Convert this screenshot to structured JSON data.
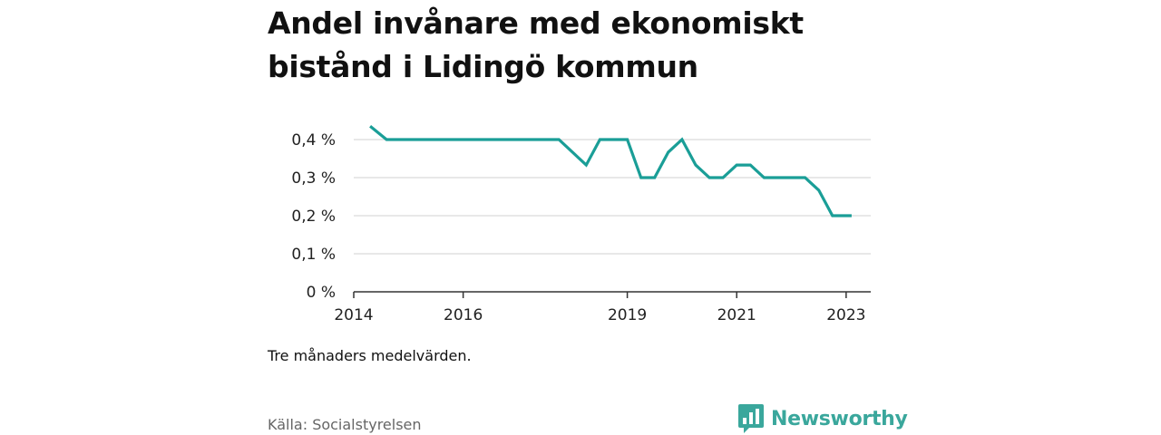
{
  "title": "Andel invånare med ekonomiskt bistånd i Lidingö kommun",
  "note": "Tre månaders medelvärden.",
  "source": "Källa: Socialstyrelsen",
  "brand": {
    "name": "Newsworthy",
    "color": "#3aa79c",
    "icon": "bar-chart-logo-icon"
  },
  "chart_data": {
    "type": "line",
    "title": "Andel invånare med ekonomiskt bistånd i Lidingö kommun",
    "xlabel": "",
    "ylabel": "",
    "ylim": [
      0,
      0.45
    ],
    "xlim": [
      2014,
      2023.45
    ],
    "grid": true,
    "line_color": "#1a9e97",
    "y_ticks": [
      {
        "value": 0,
        "label": "0 %"
      },
      {
        "value": 0.1,
        "label": "0,1 %"
      },
      {
        "value": 0.2,
        "label": "0,2 %"
      },
      {
        "value": 0.3,
        "label": "0,3 %"
      },
      {
        "value": 0.4,
        "label": "0,4 %"
      }
    ],
    "x_ticks": [
      {
        "value": 2014,
        "label": "2014"
      },
      {
        "value": 2016,
        "label": "2016"
      },
      {
        "value": 2019,
        "label": "2019"
      },
      {
        "value": 2021,
        "label": "2021"
      },
      {
        "value": 2023,
        "label": "2023"
      }
    ],
    "series": [
      {
        "x": [
          2014.3,
          2014.6,
          2017.75,
          2018.25,
          2018.5,
          2019.0,
          2019.25,
          2019.5,
          2019.75,
          2020.0,
          2020.25,
          2020.5,
          2020.75,
          2021.0,
          2021.25,
          2021.5,
          2021.75,
          2022.0,
          2022.25,
          2022.5,
          2022.75,
          2023.1
        ],
        "y": [
          0.435,
          0.4,
          0.4,
          0.333,
          0.4,
          0.4,
          0.3,
          0.3,
          0.367,
          0.4,
          0.333,
          0.3,
          0.3,
          0.333,
          0.333,
          0.3,
          0.3,
          0.3,
          0.3,
          0.267,
          0.2,
          0.2
        ]
      }
    ]
  }
}
